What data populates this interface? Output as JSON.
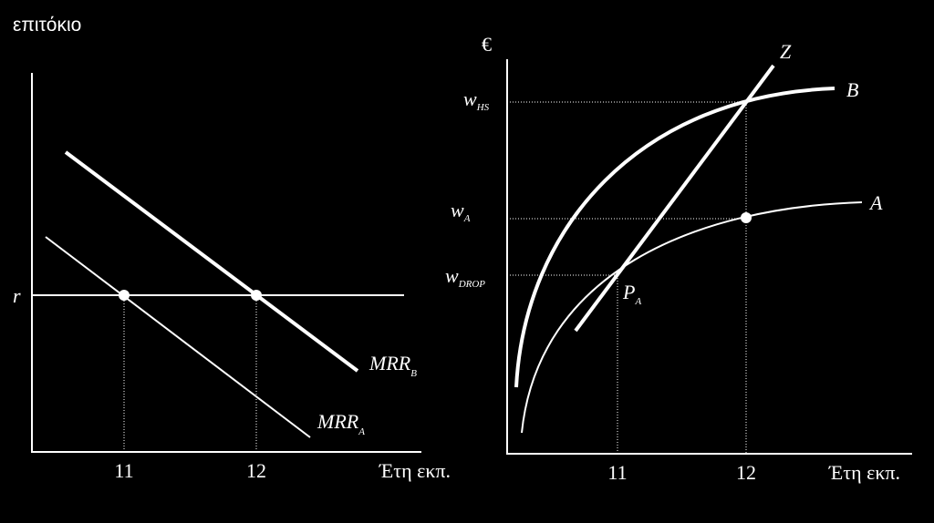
{
  "left_panel": {
    "y_axis_label": "επιτόκιο",
    "rate_label": "r",
    "x_ticks": [
      "11",
      "12"
    ],
    "x_axis_label": "Έτη εκπ.",
    "curves": [
      {
        "name": "MRR",
        "subscript": "B"
      },
      {
        "name": "MRR",
        "subscript": "A"
      }
    ]
  },
  "right_panel": {
    "y_axis_label": "€",
    "y_labels": [
      {
        "name": "w",
        "subscript": "HS"
      },
      {
        "name": "w",
        "subscript": "A"
      },
      {
        "name": "w",
        "subscript": "DROP"
      }
    ],
    "x_ticks": [
      "11",
      "12"
    ],
    "x_axis_label": "Έτη εκπ.",
    "curves": [
      "Z",
      "B",
      "A"
    ],
    "point_label": {
      "name": "P",
      "subscript": "A"
    }
  }
}
